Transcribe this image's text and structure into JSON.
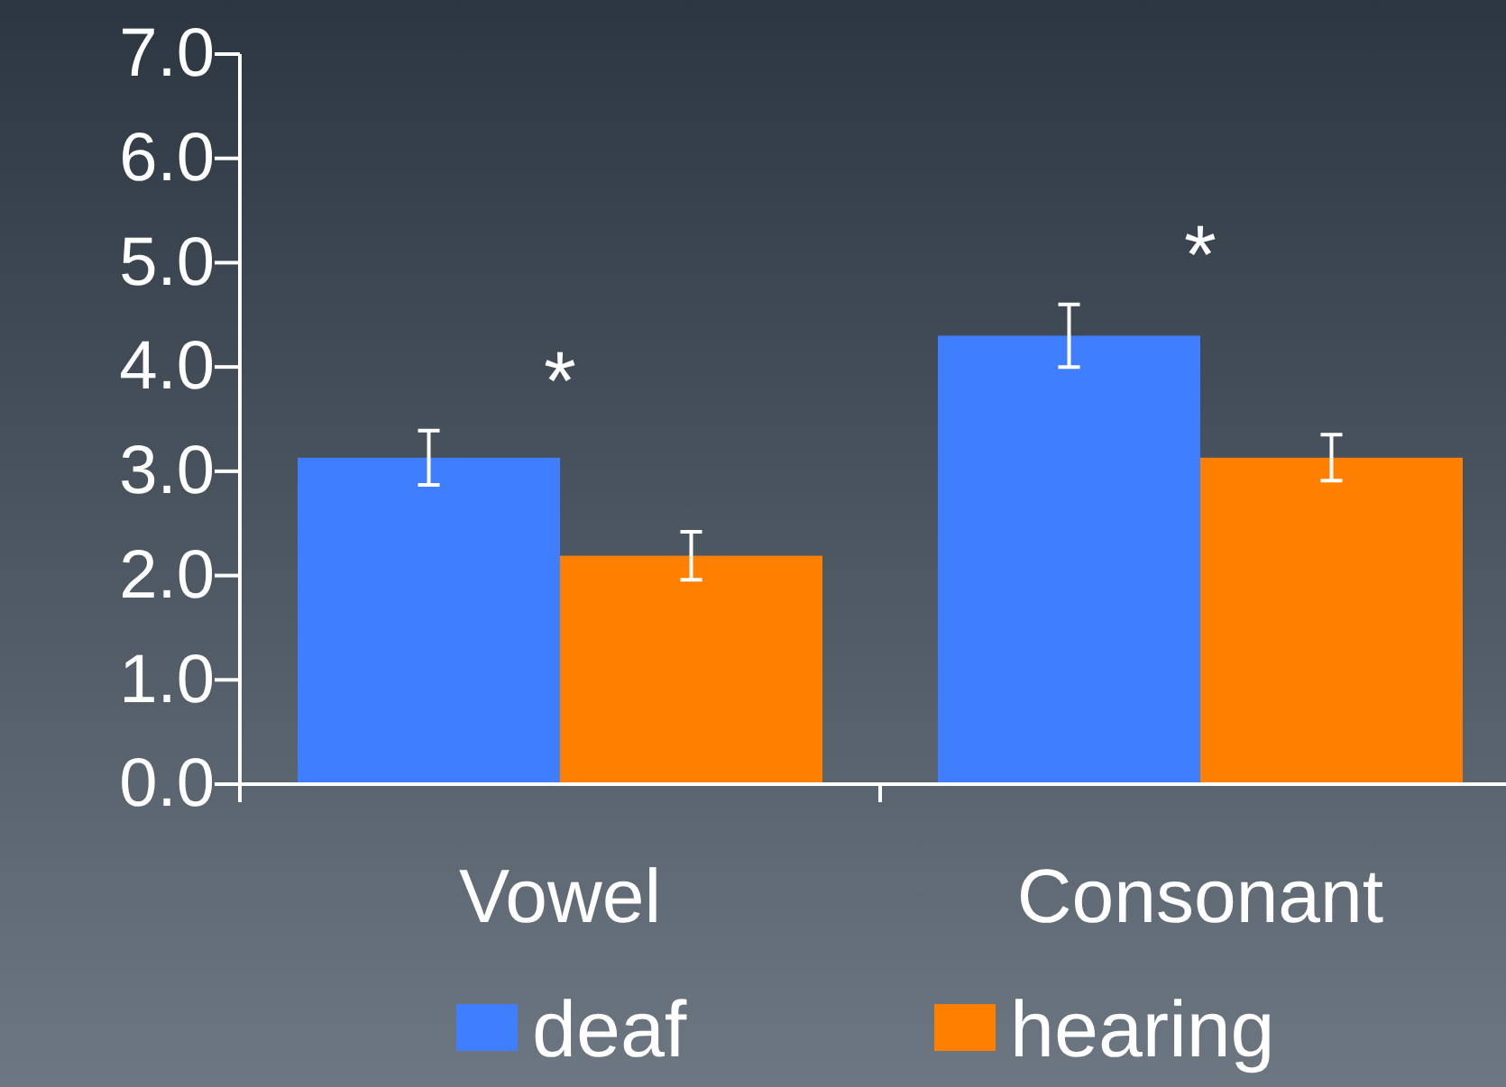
{
  "chart_data": {
    "type": "bar",
    "categories": [
      "Vowel",
      "Consonant"
    ],
    "series": [
      {
        "name": "deaf",
        "color": "#3f7fff",
        "values": [
          3.13,
          4.3
        ],
        "errors": [
          0.26,
          0.3
        ]
      },
      {
        "name": "hearing",
        "color": "#ff7f00",
        "values": [
          2.19,
          3.13
        ],
        "errors": [
          0.23,
          0.22
        ]
      }
    ],
    "ylim": [
      0,
      7
    ],
    "yticks": [
      {
        "value": 0,
        "label": "0.0"
      },
      {
        "value": 1,
        "label": "1.0"
      },
      {
        "value": 2,
        "label": "2.0"
      },
      {
        "value": 3,
        "label": "3.0"
      },
      {
        "value": 4,
        "label": "4.0"
      },
      {
        "value": 5,
        "label": "5.0"
      },
      {
        "value": 6,
        "label": "6.0"
      },
      {
        "value": 7,
        "label": "7.0"
      }
    ],
    "annotations": [
      "*",
      "*"
    ],
    "legend": "bottom"
  }
}
